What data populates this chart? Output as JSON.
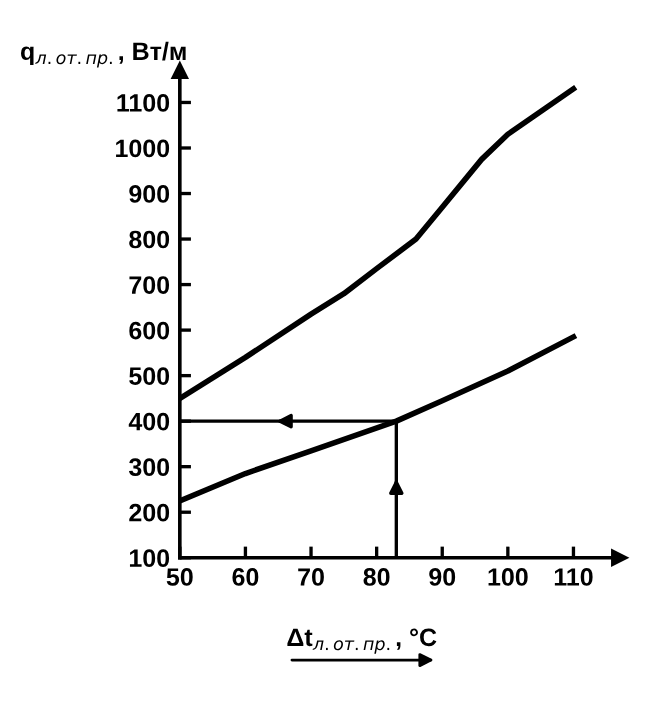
{
  "chart_data": {
    "type": "line",
    "xlabel": "Δt$_{л.от.пр.}$, °C",
    "ylabel": "q$_{л.от.пр.}$, Вт/м",
    "series": [
      {
        "color": "#000000",
        "x": [
          50,
          60,
          70,
          75,
          80,
          86,
          90,
          96,
          100,
          110
        ],
        "values": [
          450,
          540,
          635,
          680,
          735,
          800,
          870,
          975,
          1030,
          1130
        ]
      },
      {
        "color": "#000000",
        "x": [
          50,
          60,
          70,
          83,
          90,
          100,
          110
        ],
        "values": [
          225,
          285,
          335,
          400,
          445,
          510,
          585
        ]
      }
    ],
    "xlim": [
      50,
      117
    ],
    "xticks": [
      50,
      60,
      70,
      80,
      90,
      100,
      110
    ],
    "ylim": [
      100,
      1170
    ],
    "yticks": [
      100,
      200,
      300,
      400,
      500,
      600,
      700,
      800,
      900,
      1000,
      1100
    ],
    "ref_lines": [
      {
        "axis": "x",
        "value": 83,
        "color": "#000000",
        "line_style": "solid"
      },
      {
        "axis": "y",
        "value": 400,
        "color": "#000000",
        "line_style": "solid"
      }
    ],
    "grid": false,
    "legend": false,
    "marker": "none",
    "line_style": "solid"
  }
}
